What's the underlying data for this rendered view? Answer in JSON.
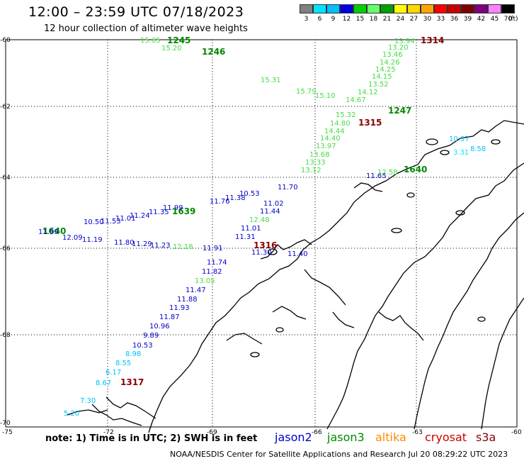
{
  "header": {
    "title": "12:00 – 23:59 UTC 07/18/2023",
    "subtitle": "12 hour collection of altimeter wave heights"
  },
  "scale": {
    "labels": [
      "3",
      "6",
      "9",
      "12",
      "15",
      "18",
      "21",
      "24",
      "27",
      "30",
      "33",
      "36",
      "39",
      "42",
      "45",
      "70"
    ],
    "unit": "(ft)",
    "colors": [
      "#808080",
      "#00e5ff",
      "#00bfff",
      "#0000e0",
      "#00d000",
      "#66ff66",
      "#00a000",
      "#ffff00",
      "#ffd700",
      "#ffa500",
      "#ff0000",
      "#c80000",
      "#800000",
      "#800080",
      "#ff80ff",
      "#000000"
    ]
  },
  "axes": {
    "lat_labels": [
      "-60",
      "-62",
      "-64",
      "-66",
      "-68",
      "-70"
    ],
    "lon_labels": [
      "-75",
      "-72",
      "-69",
      "-66",
      "-63",
      "-60"
    ]
  },
  "footer": {
    "note": "note:  1) Time is in UTC;  2) SWH is in feet",
    "credit": "NOAA/NESDIS Center for Satellite Applications and Research     Jul 20 08:29:22 UTC 2023",
    "satellites": [
      {
        "name": "jason2",
        "color": "#0000cc"
      },
      {
        "name": "jason3",
        "color": "#008800"
      },
      {
        "name": "altika",
        "color": "#ff8c00"
      },
      {
        "name": "cryosat",
        "color": "#cc0000"
      },
      {
        "name": "s3a",
        "color": "#880000"
      }
    ]
  },
  "tracks": {
    "time_labels": [
      {
        "text": "1245",
        "color": "#008800"
      },
      {
        "text": "1246",
        "color": "#008800"
      },
      {
        "text": "1314",
        "color": "#880000"
      },
      {
        "text": "1247",
        "color": "#008800"
      },
      {
        "text": "1315",
        "color": "#880000"
      },
      {
        "text": "1640",
        "color": "#008800"
      },
      {
        "text": "1639",
        "color": "#008800"
      },
      {
        "text": "1316",
        "color": "#880000"
      },
      {
        "text": "1317",
        "color": "#880000"
      },
      {
        "text": "1640",
        "color": "#008800"
      }
    ],
    "wave_values": [
      {
        "text": "15.65",
        "color": "#44dd44"
      },
      {
        "text": "15.20",
        "color": "#44dd44"
      },
      {
        "text": "13.94",
        "color": "#44dd44"
      },
      {
        "text": "13.20",
        "color": "#44dd44"
      },
      {
        "text": "13.46",
        "color": "#44dd44"
      },
      {
        "text": "14.26",
        "color": "#44dd44"
      },
      {
        "text": "14.25",
        "color": "#44dd44"
      },
      {
        "text": "14.15",
        "color": "#44dd44"
      },
      {
        "text": "13.52",
        "color": "#44dd44"
      },
      {
        "text": "14.12",
        "color": "#44dd44"
      },
      {
        "text": "14.67",
        "color": "#44dd44"
      },
      {
        "text": "15.31",
        "color": "#44dd44"
      },
      {
        "text": "15.79",
        "color": "#44dd44"
      },
      {
        "text": "15.10",
        "color": "#44dd44"
      },
      {
        "text": "15.32",
        "color": "#44dd44"
      },
      {
        "text": "14.80",
        "color": "#44dd44"
      },
      {
        "text": "14.44",
        "color": "#44dd44"
      },
      {
        "text": "14.40",
        "color": "#44dd44"
      },
      {
        "text": "13.97",
        "color": "#44dd44"
      },
      {
        "text": "13.68",
        "color": "#44dd44"
      },
      {
        "text": "13.33",
        "color": "#44dd44"
      },
      {
        "text": "13.12",
        "color": "#44dd44"
      },
      {
        "text": "10.37",
        "color": "#00bfff"
      },
      {
        "text": "8.58",
        "color": "#00bfff"
      },
      {
        "text": "3.31",
        "color": "#00e5ff"
      },
      {
        "text": "11.70",
        "color": "#0000cc"
      },
      {
        "text": "11.65",
        "color": "#0000cc"
      },
      {
        "text": "12.58",
        "color": "#44dd44"
      },
      {
        "text": "11.02",
        "color": "#0000cc"
      },
      {
        "text": "11.44",
        "color": "#0000cc"
      },
      {
        "text": "12.48",
        "color": "#44dd44"
      },
      {
        "text": "11.01",
        "color": "#0000cc"
      },
      {
        "text": "11.31",
        "color": "#0000cc"
      },
      {
        "text": "11.76",
        "color": "#0000cc"
      },
      {
        "text": "11.38",
        "color": "#0000cc"
      },
      {
        "text": "10.53",
        "color": "#0000cc"
      },
      {
        "text": "11.99",
        "color": "#0000cc"
      },
      {
        "text": "11.35",
        "color": "#0000cc"
      },
      {
        "text": "11.24",
        "color": "#0000cc"
      },
      {
        "text": "11.01",
        "color": "#0000cc"
      },
      {
        "text": "11.53",
        "color": "#0000cc"
      },
      {
        "text": "10.50",
        "color": "#0000cc"
      },
      {
        "text": "11.99",
        "color": "#0000cc"
      },
      {
        "text": "12.09",
        "color": "#0000cc"
      },
      {
        "text": "11.19",
        "color": "#0000cc"
      },
      {
        "text": "11.80",
        "color": "#0000cc"
      },
      {
        "text": "11.29",
        "color": "#0000cc"
      },
      {
        "text": "11.23",
        "color": "#0000cc"
      },
      {
        "text": "12.18",
        "color": "#44dd44"
      },
      {
        "text": "11.91",
        "color": "#0000cc"
      },
      {
        "text": "11.30",
        "color": "#0000cc"
      },
      {
        "text": "11.40",
        "color": "#0000cc"
      },
      {
        "text": "11.74",
        "color": "#0000cc"
      },
      {
        "text": "11.82",
        "color": "#0000cc"
      },
      {
        "text": "13.05",
        "color": "#44dd44"
      },
      {
        "text": "11.47",
        "color": "#0000cc"
      },
      {
        "text": "11.88",
        "color": "#0000cc"
      },
      {
        "text": "11.93",
        "color": "#0000cc"
      },
      {
        "text": "11.87",
        "color": "#0000cc"
      },
      {
        "text": "10.96",
        "color": "#0000cc"
      },
      {
        "text": "9.89",
        "color": "#0000cc"
      },
      {
        "text": "10.53",
        "color": "#0000cc"
      },
      {
        "text": "8.98",
        "color": "#00bfff"
      },
      {
        "text": "8.55",
        "color": "#00bfff"
      },
      {
        "text": "6.17",
        "color": "#00bfff"
      },
      {
        "text": "8.67",
        "color": "#00bfff"
      },
      {
        "text": "7.30",
        "color": "#00bfff"
      },
      {
        "text": "5.20",
        "color": "#00bfff"
      }
    ]
  }
}
